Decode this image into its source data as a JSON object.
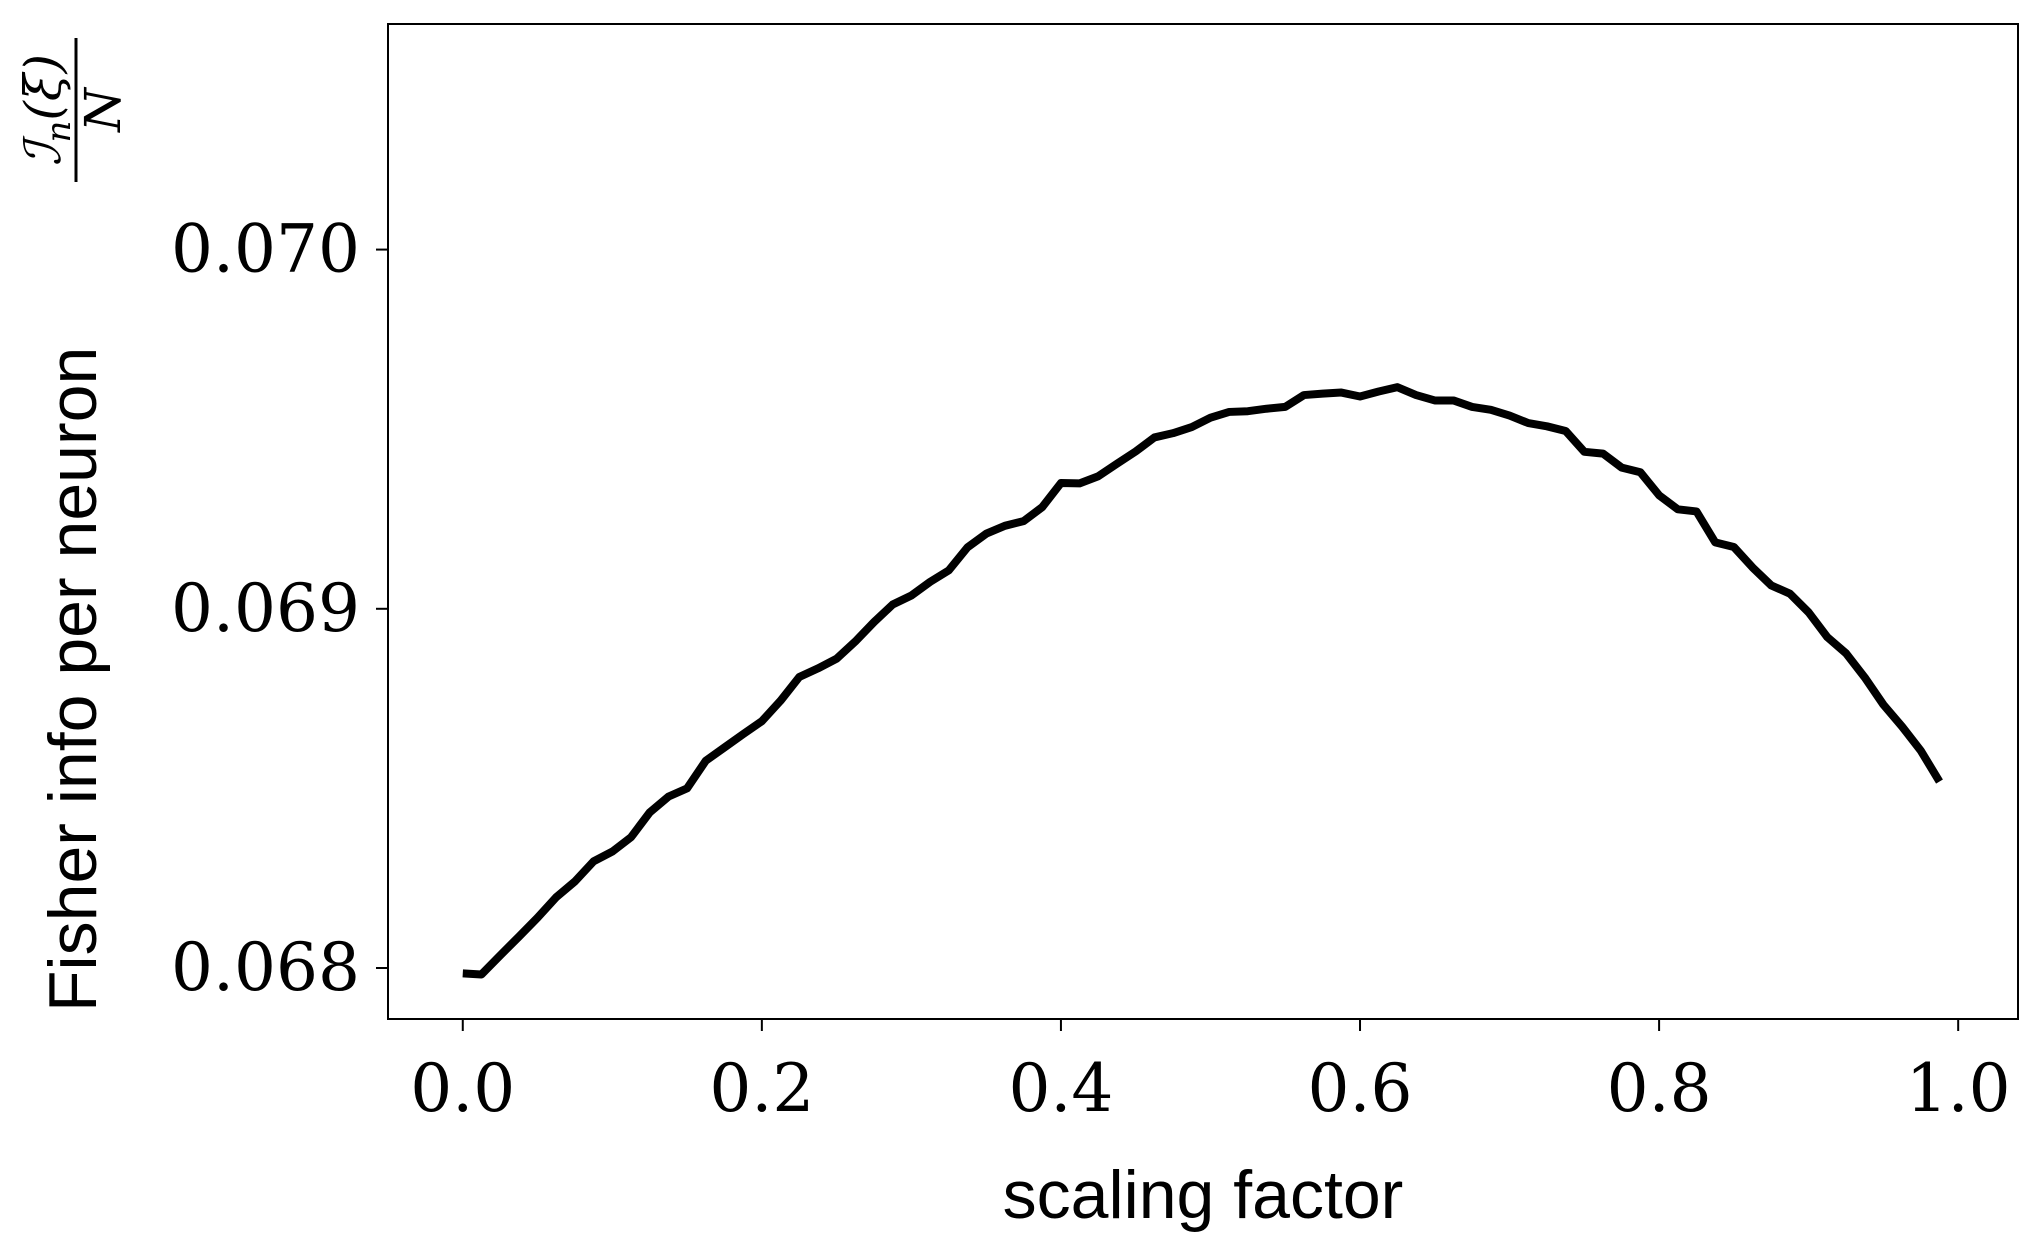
{
  "chart_data": {
    "type": "line",
    "xlabel": "scaling factor",
    "ylabel": {
      "text": "Fisher info per neuron",
      "formula_numerator_main": "ℐ",
      "formula_numerator_sub": "n",
      "formula_numerator_arg": "(ξ)",
      "formula_denominator": "N"
    },
    "xlim": [
      -0.05,
      1.04
    ],
    "ylim": [
      0.067858,
      0.070628
    ],
    "x_ticks": [
      {
        "value": 0.0,
        "label": "0.0"
      },
      {
        "value": 0.2,
        "label": "0.2"
      },
      {
        "value": 0.4,
        "label": "0.4"
      },
      {
        "value": 0.6,
        "label": "0.6"
      },
      {
        "value": 0.8,
        "label": "0.8"
      },
      {
        "value": 1.0,
        "label": "1.0"
      }
    ],
    "y_ticks": [
      {
        "value": 0.068,
        "label": "0.068"
      },
      {
        "value": 0.069,
        "label": "0.069"
      },
      {
        "value": 0.07,
        "label": "0.070"
      }
    ],
    "grid": false,
    "legend": "none",
    "series": [
      {
        "color": "#000000",
        "x": [
          0.0,
          0.0125,
          0.025,
          0.0375,
          0.05,
          0.0625,
          0.075,
          0.0875,
          0.1,
          0.1125,
          0.125,
          0.1375,
          0.15,
          0.1625,
          0.175,
          0.1875,
          0.2,
          0.2125,
          0.225,
          0.2375,
          0.25,
          0.2625,
          0.275,
          0.2875,
          0.3,
          0.3125,
          0.325,
          0.3375,
          0.35,
          0.3625,
          0.375,
          0.3875,
          0.4,
          0.4125,
          0.425,
          0.4375,
          0.45,
          0.4625,
          0.475,
          0.4875,
          0.5,
          0.5125,
          0.525,
          0.5375,
          0.55,
          0.5625,
          0.575,
          0.5875,
          0.6,
          0.6125,
          0.625,
          0.6375,
          0.65,
          0.6625,
          0.675,
          0.6875,
          0.7,
          0.7125,
          0.725,
          0.7375,
          0.75,
          0.7625,
          0.775,
          0.7875,
          0.8,
          0.8125,
          0.825,
          0.8375,
          0.85,
          0.8625,
          0.875,
          0.8875,
          0.9,
          0.9125,
          0.925,
          0.9375,
          0.95,
          0.9625,
          0.975,
          0.9875
        ],
        "y": [
          0.067985,
          0.067982,
          0.068035,
          0.068087,
          0.06814,
          0.068197,
          0.068241,
          0.068297,
          0.068324,
          0.068364,
          0.068433,
          0.068477,
          0.0685,
          0.068577,
          0.068614,
          0.068651,
          0.068687,
          0.068744,
          0.06881,
          0.068834,
          0.068861,
          0.068909,
          0.068963,
          0.069012,
          0.069037,
          0.069075,
          0.069107,
          0.069171,
          0.069209,
          0.069231,
          0.069244,
          0.069283,
          0.06935,
          0.069349,
          0.069369,
          0.069404,
          0.069438,
          0.069477,
          0.069489,
          0.069506,
          0.069532,
          0.069548,
          0.06955,
          0.069557,
          0.069562,
          0.069595,
          0.069599,
          0.069602,
          0.069591,
          0.069605,
          0.069617,
          0.069595,
          0.06958,
          0.06958,
          0.069562,
          0.069554,
          0.069538,
          0.069517,
          0.069508,
          0.069495,
          0.069437,
          0.069432,
          0.069393,
          0.06938,
          0.069316,
          0.069277,
          0.069271,
          0.069185,
          0.069172,
          0.069115,
          0.069065,
          0.069042,
          0.06899,
          0.068921,
          0.068876,
          0.068809,
          0.068733,
          0.068672,
          0.068605,
          0.068519
        ]
      }
    ]
  }
}
